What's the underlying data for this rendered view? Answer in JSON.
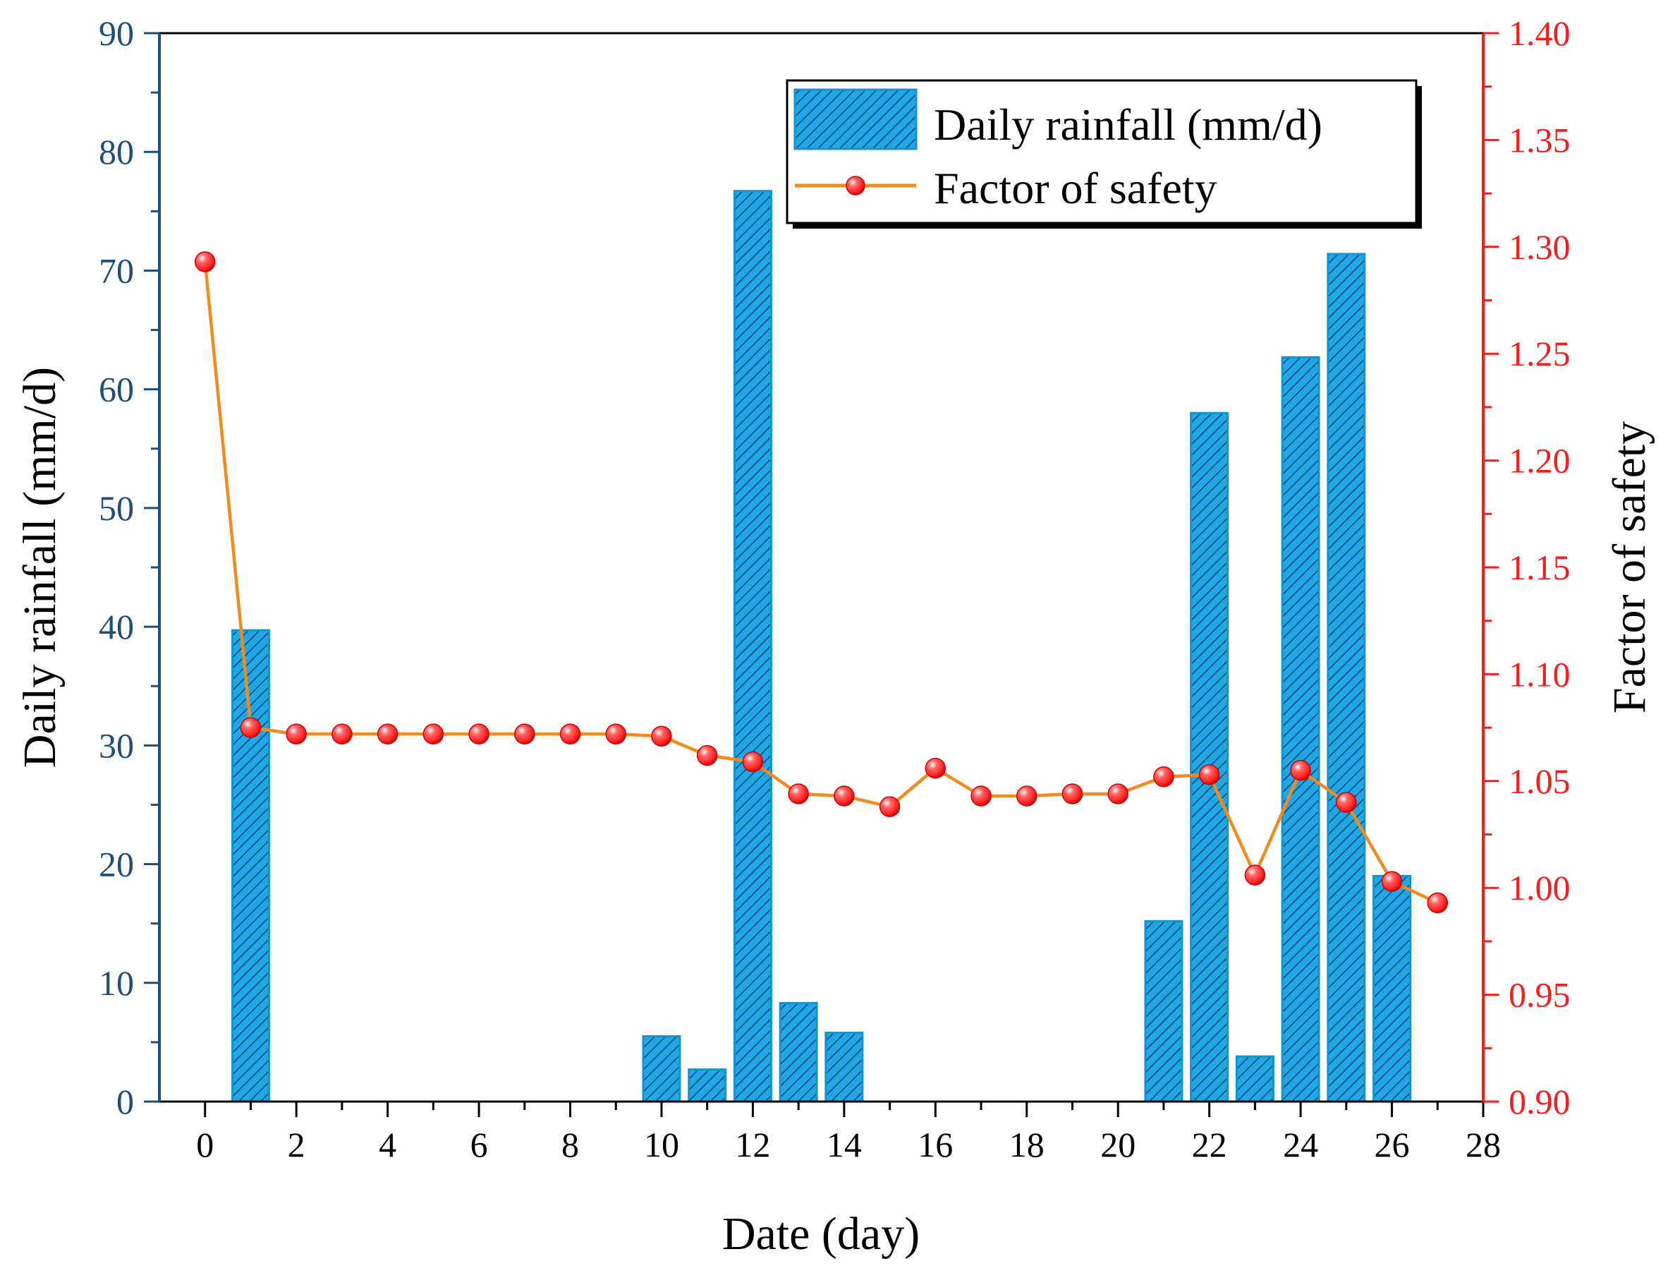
{
  "chart_data": {
    "type": "bar",
    "title": "",
    "xlabel": "Date (day)",
    "ylabel": "Daily rainfall (mm/d)",
    "y2label": "Factor of safety",
    "xlim": [
      -1,
      28
    ],
    "ylim": [
      0,
      90
    ],
    "y2lim": [
      0.9,
      1.4
    ],
    "xticks": [
      0,
      2,
      4,
      6,
      8,
      10,
      12,
      14,
      16,
      18,
      20,
      22,
      24,
      26,
      28
    ],
    "yticks": [
      0,
      10,
      20,
      30,
      40,
      50,
      60,
      70,
      80,
      90
    ],
    "y2ticks": [
      "0.90",
      "0.95",
      "1.00",
      "1.05",
      "1.10",
      "1.15",
      "1.20",
      "1.25",
      "1.30",
      "1.35",
      "1.40"
    ],
    "grid": false,
    "legend_position": "top-right",
    "colors": {
      "bar_fill": "#1ea8e6",
      "bar_hatch": "#0c4f7c",
      "bar_edge": "#1593cf",
      "line": "#f28a1c",
      "marker": "#ff2020",
      "left_axis": "#1c4f7a",
      "right_axis": "#ff1a1a"
    },
    "series": [
      {
        "name": "Daily rainfall (mm/d)",
        "type": "bar",
        "axis": "left",
        "x": [
          1,
          10,
          11,
          12,
          13,
          14,
          21,
          22,
          23,
          24,
          25,
          26
        ],
        "values": [
          39.7,
          5.5,
          2.7,
          76.7,
          8.3,
          5.8,
          15.2,
          58.0,
          3.8,
          62.7,
          71.4,
          19.0
        ]
      },
      {
        "name": "Factor of safety",
        "type": "line",
        "axis": "right",
        "x": [
          0,
          1,
          2,
          3,
          4,
          5,
          6,
          7,
          8,
          9,
          10,
          11,
          12,
          13,
          14,
          15,
          16,
          17,
          18,
          19,
          20,
          21,
          22,
          23,
          24,
          25,
          26,
          27
        ],
        "values": [
          1.293,
          1.075,
          1.072,
          1.072,
          1.072,
          1.072,
          1.072,
          1.072,
          1.072,
          1.072,
          1.071,
          1.062,
          1.059,
          1.044,
          1.043,
          1.038,
          1.056,
          1.043,
          1.043,
          1.044,
          1.044,
          1.052,
          1.053,
          1.006,
          1.055,
          1.04,
          1.003,
          0.993
        ]
      }
    ]
  }
}
